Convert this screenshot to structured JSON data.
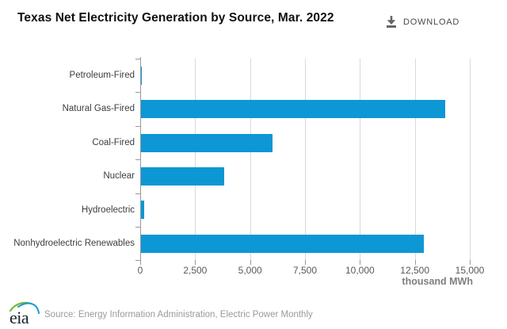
{
  "header": {
    "title": "Texas Net Electricity Generation by Source, Mar. 2022",
    "download_label": "DOWNLOAD"
  },
  "chart_data": {
    "type": "bar",
    "orientation": "horizontal",
    "title": "Texas Net Electricity Generation by Source, Mar. 2022",
    "categories": [
      "Petroleum-Fired",
      "Natural Gas-Fired",
      "Coal-Fired",
      "Nuclear",
      "Hydroelectric",
      "Nonhydroelectric Renewables"
    ],
    "values": [
      25,
      13835,
      5990,
      3770,
      150,
      12880
    ],
    "xlabel": "thousand MWh",
    "xlim": [
      0,
      15000
    ],
    "x_ticks": [
      0,
      2500,
      5000,
      7500,
      10000,
      12500,
      15000
    ],
    "x_tick_labels": [
      "0",
      "2,500",
      "5,000",
      "7,500",
      "10,000",
      "12,500",
      "15,000"
    ],
    "grid": true,
    "legend": false,
    "bar_color": "#0d97d5"
  },
  "footer": {
    "logo_text": "eia",
    "source_text": "Source: Energy Information Administration, Electric Power Monthly"
  },
  "colors": {
    "bar": "#0d97d5",
    "gridline": "#d9d9d9",
    "axis": "#999999",
    "title_text": "#111111",
    "category_label": "#3d3d3d",
    "tick_label": "#595959",
    "axis_title": "#7f7f7f",
    "download_text": "#4a4a4a",
    "download_icon": "#666666",
    "source_text": "#9a9a9a",
    "logo_green": "#76b82a",
    "logo_blue": "#1e9cd7",
    "logo_text_color": "#16222e"
  }
}
